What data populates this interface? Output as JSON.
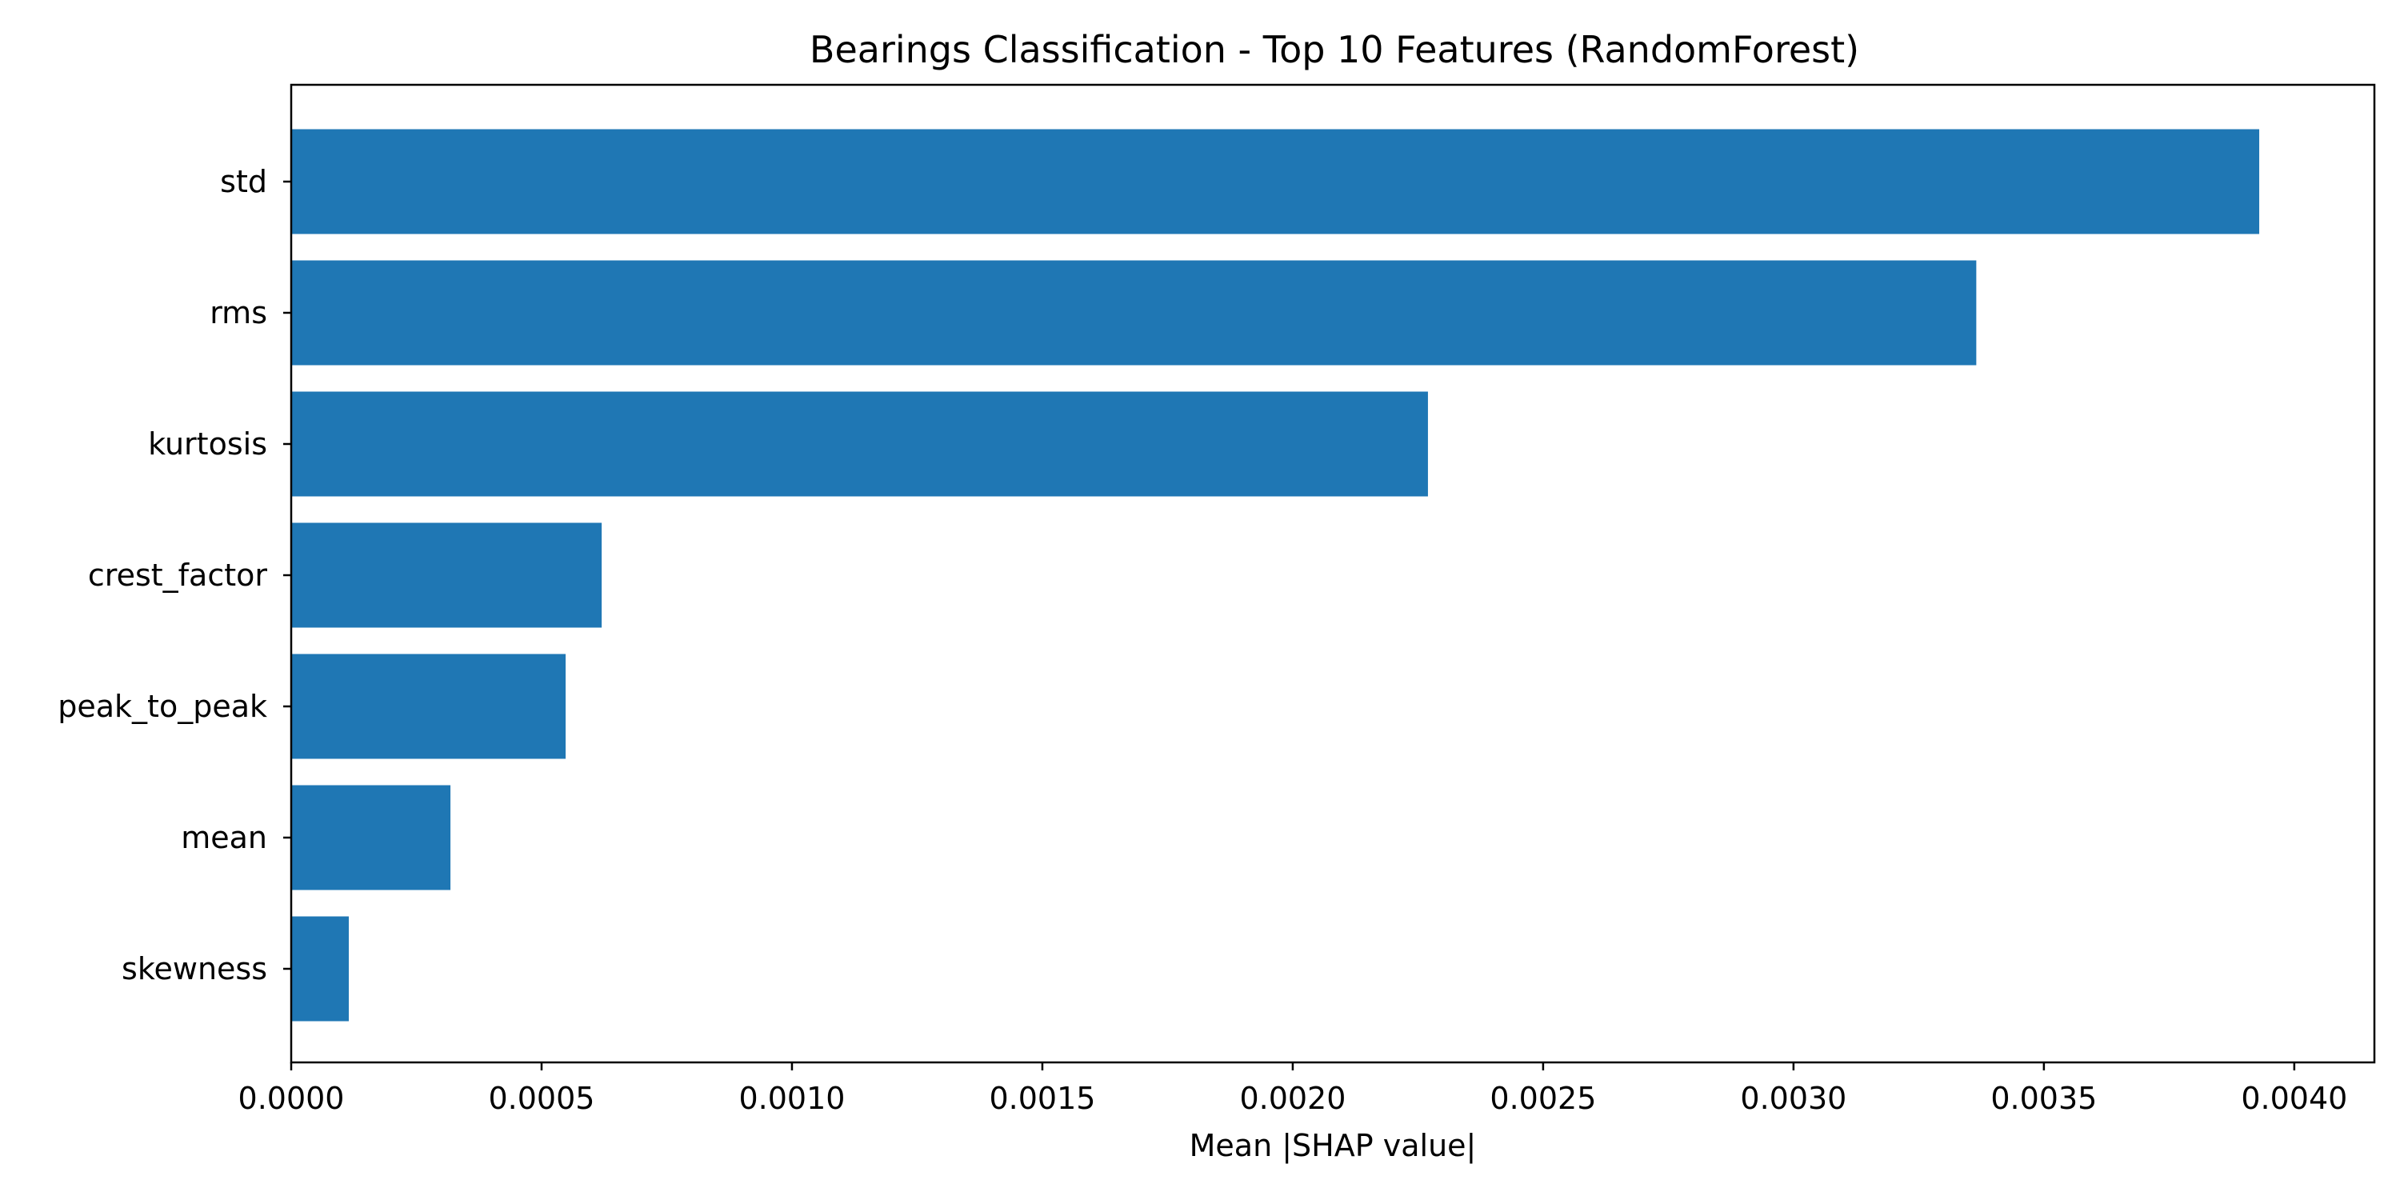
{
  "chart_data": {
    "type": "bar",
    "orientation": "horizontal",
    "title": "Bearings Classification - Top 10 Features (RandomForest)",
    "xlabel": "Mean |SHAP value|",
    "ylabel": "",
    "categories": [
      "std",
      "rms",
      "kurtosis",
      "crest_factor",
      "peak_to_peak",
      "mean",
      "skewness"
    ],
    "values": [
      0.00393,
      0.003365,
      0.00227,
      0.00062,
      0.000548,
      0.000318,
      0.000115
    ],
    "xlim": [
      0,
      0.00416
    ],
    "xticks": [
      0.0,
      0.0005,
      0.001,
      0.0015,
      0.002,
      0.0025,
      0.003,
      0.0035,
      0.004
    ],
    "xtick_labels": [
      "0.0000",
      "0.0005",
      "0.0010",
      "0.0015",
      "0.0020",
      "0.0025",
      "0.0030",
      "0.0035",
      "0.0040"
    ],
    "bar_color": "#1f77b4",
    "grid": false,
    "legend": "none"
  }
}
